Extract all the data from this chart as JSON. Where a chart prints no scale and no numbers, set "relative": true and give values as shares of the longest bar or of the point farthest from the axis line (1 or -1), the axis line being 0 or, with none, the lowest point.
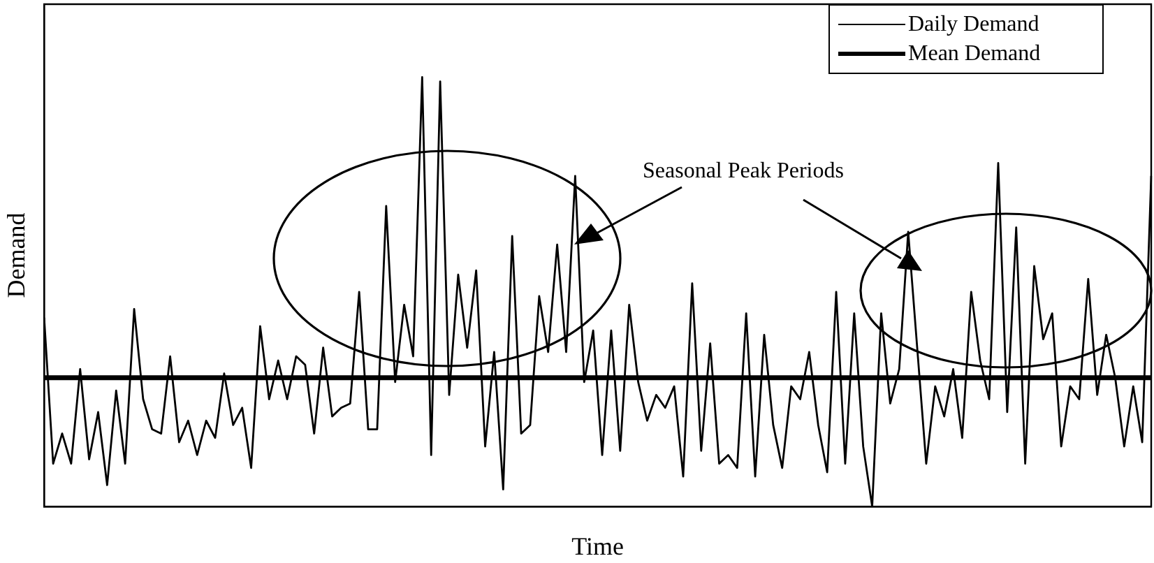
{
  "chart_data": {
    "type": "line",
    "xlabel": "Time",
    "ylabel": "Demand",
    "relative": true,
    "categories": [
      null,
      null,
      null,
      null,
      null,
      null,
      null,
      null,
      null,
      null,
      null,
      null,
      null,
      null,
      null,
      null,
      null,
      null,
      null,
      null,
      null,
      null,
      null,
      null,
      null,
      null,
      null,
      null,
      null,
      null,
      null,
      null,
      null,
      null,
      null,
      null,
      null,
      null,
      null,
      null,
      null,
      null,
      null,
      null,
      null,
      null,
      null,
      null,
      null,
      null,
      null,
      null,
      null,
      null,
      null,
      null,
      null,
      null,
      null,
      null,
      null,
      null,
      null,
      null,
      null,
      null,
      null,
      null,
      null,
      null,
      null,
      null,
      null,
      null,
      null,
      null,
      null,
      null,
      null,
      null,
      null,
      null,
      null,
      null,
      null,
      null,
      null,
      null,
      null,
      null,
      null,
      null,
      null,
      null,
      null,
      null,
      null,
      null,
      null,
      null,
      null,
      null,
      null,
      null,
      null,
      null,
      null,
      null,
      null,
      null,
      null,
      null,
      null,
      null,
      null,
      null,
      null,
      null,
      null,
      null,
      null,
      null,
      null,
      null
    ],
    "legend": "top right",
    "marker": "none",
    "annotations": [
      "Seasonal Peak Periods"
    ],
    "series": [
      {
        "name": "Daily Demand",
        "color": "#000000",
        "values": [
          0.44,
          0.1,
          0.17,
          0.1,
          0.32,
          0.11,
          0.22,
          0.05,
          0.27,
          0.1,
          0.46,
          0.25,
          0.18,
          0.17,
          0.35,
          0.15,
          0.2,
          0.12,
          0.2,
          0.16,
          0.31,
          0.19,
          0.23,
          0.09,
          0.42,
          0.25,
          0.34,
          0.25,
          0.35,
          0.33,
          0.17,
          0.37,
          0.21,
          0.23,
          0.24,
          0.5,
          0.18,
          0.18,
          0.7,
          0.29,
          0.47,
          0.35,
          1,
          0.12,
          0.99,
          0.26,
          0.54,
          0.37,
          0.55,
          0.14,
          0.36,
          0.04,
          0.63,
          0.17,
          0.19,
          0.49,
          0.36,
          0.61,
          0.36,
          0.77,
          0.29,
          0.41,
          0.12,
          0.41,
          0.13,
          0.47,
          0.29,
          0.2,
          0.26,
          0.23,
          0.28,
          0.07,
          0.52,
          0.13,
          0.38,
          0.1,
          0.12,
          0.09,
          0.45,
          0.07,
          0.4,
          0.19,
          0.09,
          0.28,
          0.25,
          0.36,
          0.19,
          0.08,
          0.5,
          0.1,
          0.45,
          0.14,
          0,
          0.45,
          0.24,
          0.32,
          0.64,
          0.37,
          0.1,
          0.28,
          0.21,
          0.32,
          0.16,
          0.5,
          0.34,
          0.25,
          0.8,
          0.22,
          0.65,
          0.1,
          0.56,
          0.39,
          0.45,
          0.14,
          0.28,
          0.25,
          0.53,
          0.26,
          0.4,
          0.3,
          0.14,
          0.28,
          0.15,
          0.77
        ]
      },
      {
        "name": "Mean Demand",
        "color": "#000000",
        "values": [
          0.3,
          0.3,
          0.3,
          0.3,
          0.3,
          0.3,
          0.3,
          0.3,
          0.3,
          0.3,
          0.3,
          0.3,
          0.3,
          0.3,
          0.3,
          0.3,
          0.3,
          0.3,
          0.3,
          0.3,
          0.3,
          0.3,
          0.3,
          0.3,
          0.3,
          0.3,
          0.3,
          0.3,
          0.3,
          0.3,
          0.3,
          0.3,
          0.3,
          0.3,
          0.3,
          0.3,
          0.3,
          0.3,
          0.3,
          0.3,
          0.3,
          0.3,
          0.3,
          0.3,
          0.3,
          0.3,
          0.3,
          0.3,
          0.3,
          0.3,
          0.3,
          0.3,
          0.3,
          0.3,
          0.3,
          0.3,
          0.3,
          0.3,
          0.3,
          0.3,
          0.3,
          0.3,
          0.3,
          0.3,
          0.3,
          0.3,
          0.3,
          0.3,
          0.3,
          0.3,
          0.3,
          0.3,
          0.3,
          0.3,
          0.3,
          0.3,
          0.3,
          0.3,
          0.3,
          0.3,
          0.3,
          0.3,
          0.3,
          0.3,
          0.3,
          0.3,
          0.3,
          0.3,
          0.3,
          0.3,
          0.3,
          0.3,
          0.3,
          0.3,
          0.3,
          0.3,
          0.3,
          0.3,
          0.3,
          0.3,
          0.3,
          0.3,
          0.3,
          0.3,
          0.3,
          0.3,
          0.3,
          0.3,
          0.3,
          0.3,
          0.3,
          0.3,
          0.3,
          0.3,
          0.3,
          0.3,
          0.3,
          0.3,
          0.3,
          0.3,
          0.3,
          0.3,
          0.3,
          0.3
        ]
      }
    ]
  }
}
